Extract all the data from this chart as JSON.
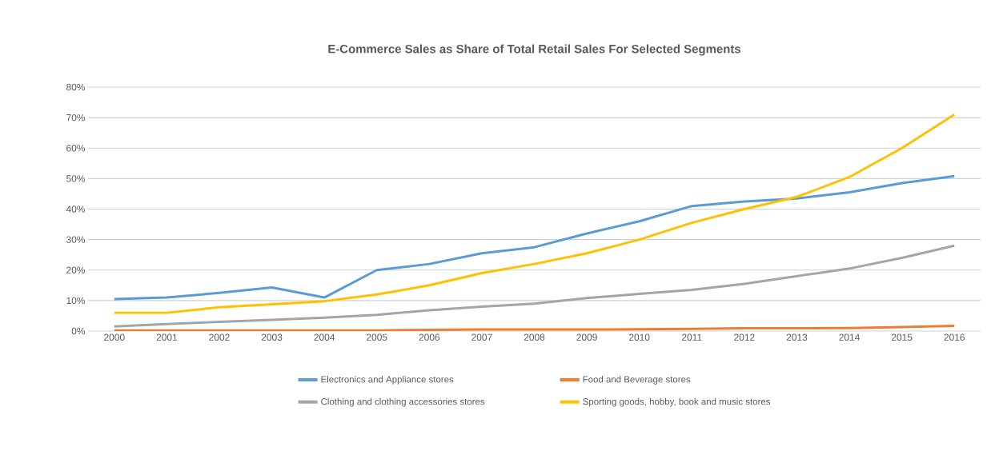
{
  "chart_data": {
    "type": "line",
    "title": "E-Commerce Sales as Share of Total Retail Sales For Selected Segments",
    "categories": [
      "2000",
      "2001",
      "2002",
      "2003",
      "2004",
      "2005",
      "2006",
      "2007",
      "2008",
      "2009",
      "2010",
      "2011",
      "2012",
      "2013",
      "2014",
      "2015",
      "2016"
    ],
    "series": [
      {
        "name": "Electronics and Appliance stores",
        "color": "#5b9bd5",
        "values": [
          10.5,
          11,
          12.5,
          14.3,
          11,
          20,
          22,
          25.5,
          27.5,
          32,
          36,
          41,
          42.5,
          43.5,
          45.5,
          48.5,
          50.8
        ]
      },
      {
        "name": "Food and Beverage stores",
        "color": "#ed7d31",
        "values": [
          0.2,
          0.2,
          0.2,
          0.2,
          0.2,
          0.2,
          0.4,
          0.5,
          0.5,
          0.5,
          0.6,
          0.7,
          0.9,
          0.9,
          1,
          1.3,
          1.7
        ]
      },
      {
        "name": "Clothing and clothing accessories stores",
        "color": "#a5a5a5",
        "values": [
          1.5,
          2.3,
          3,
          3.7,
          4.4,
          5.3,
          6.8,
          8,
          9,
          10.8,
          12.2,
          13.5,
          15.5,
          18,
          20.5,
          24,
          28
        ]
      },
      {
        "name": "Sporting goods, hobby, book and music stores",
        "color": "#ffc000",
        "values": [
          6,
          6,
          7.8,
          8.8,
          9.8,
          12,
          15,
          19,
          22,
          25.5,
          30,
          35.5,
          40,
          44,
          50.5,
          60,
          71
        ]
      }
    ],
    "ylim": [
      0,
      80
    ],
    "yticks": [
      {
        "value": 0,
        "label": "0%"
      },
      {
        "value": 10,
        "label": "10%"
      },
      {
        "value": 20,
        "label": "20%"
      },
      {
        "value": 30,
        "label": "30%"
      },
      {
        "value": 40,
        "label": "40%"
      },
      {
        "value": 50,
        "label": "50%"
      },
      {
        "value": 60,
        "label": "60%"
      },
      {
        "value": 70,
        "label": "70%"
      },
      {
        "value": 80,
        "label": "80%"
      }
    ],
    "grid": "y",
    "legend": "bottom",
    "marker": "none",
    "line_style": "solid"
  }
}
